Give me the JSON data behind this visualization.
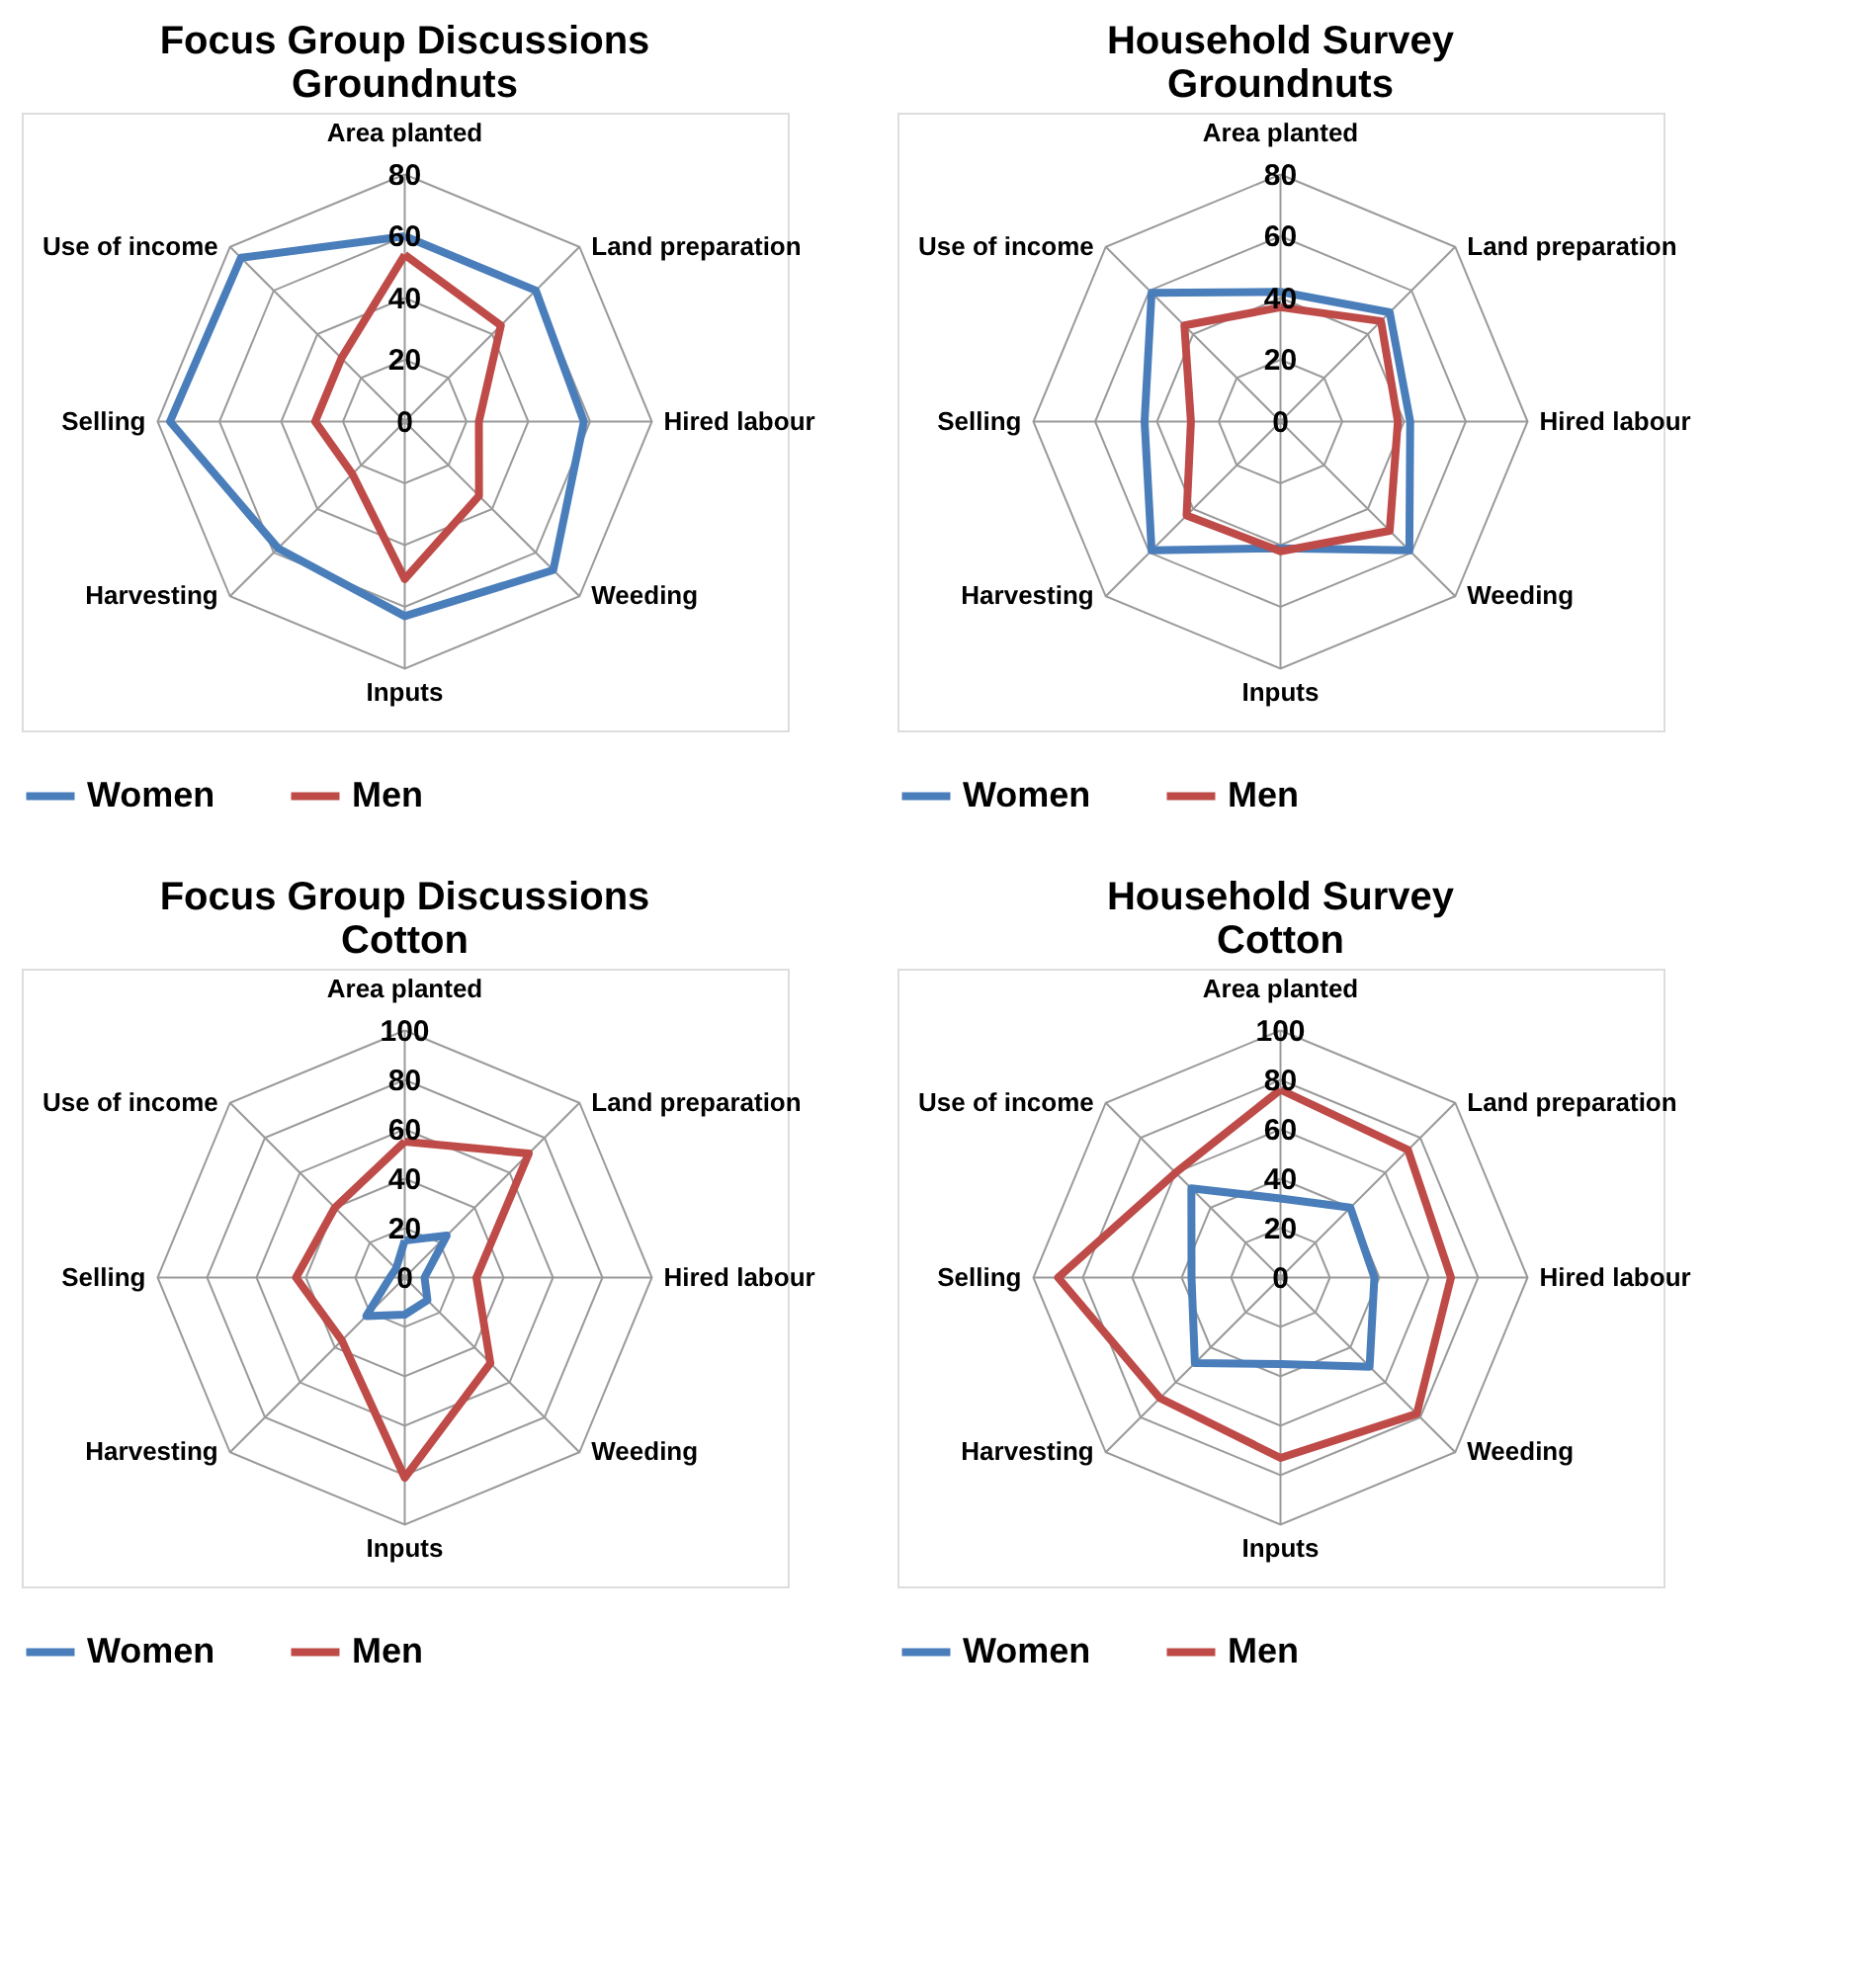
{
  "chart_data": [
    {
      "type": "radar",
      "title": "Focus Group Discussions\nGroundnuts",
      "categories": [
        "Area planted",
        "Land preparation",
        "Hired labour",
        "Weeding",
        "Inputs",
        "Harvesting",
        "Selling",
        "Use of income"
      ],
      "ylim": [
        0,
        80
      ],
      "yticks": [
        0,
        20,
        40,
        60,
        80
      ],
      "grid": true,
      "legend": "bottom",
      "series": [
        {
          "name": "Women",
          "color": "#4a7ebb",
          "values": [
            60,
            60,
            58,
            68,
            63,
            58,
            76,
            75
          ]
        },
        {
          "name": "Men",
          "color": "#be4b48",
          "values": [
            54,
            44,
            24,
            34,
            51,
            24,
            29,
            29
          ]
        }
      ]
    },
    {
      "type": "radar",
      "title": "Household Survey\nGroundnuts",
      "categories": [
        "Area planted",
        "Land preparation",
        "Hired labour",
        "Weeding",
        "Inputs",
        "Harvesting",
        "Selling",
        "Use of income"
      ],
      "ylim": [
        0,
        80
      ],
      "yticks": [
        0,
        20,
        40,
        60,
        80
      ],
      "grid": true,
      "legend": "bottom",
      "series": [
        {
          "name": "Women",
          "color": "#4a7ebb",
          "values": [
            42,
            50,
            42,
            59,
            41,
            59,
            44,
            59
          ]
        },
        {
          "name": "Men",
          "color": "#be4b48",
          "values": [
            37,
            46,
            38,
            50,
            42,
            43,
            29,
            44
          ]
        }
      ]
    },
    {
      "type": "radar",
      "title": "Focus Group Discussions\nCotton",
      "categories": [
        "Area planted",
        "Land preparation",
        "Hired labour",
        "Weeding",
        "Inputs",
        "Harvesting",
        "Selling",
        "Use of income"
      ],
      "ylim": [
        0,
        100
      ],
      "yticks": [
        0,
        20,
        40,
        60,
        80,
        100
      ],
      "grid": true,
      "legend": "bottom",
      "series": [
        {
          "name": "Women",
          "color": "#4a7ebb",
          "values": [
            15,
            24,
            8,
            13,
            15,
            22,
            6,
            5
          ]
        },
        {
          "name": "Men",
          "color": "#be4b48",
          "values": [
            55,
            71,
            29,
            49,
            81,
            36,
            44,
            40
          ]
        }
      ]
    },
    {
      "type": "radar",
      "title": "Household Survey\nCotton",
      "categories": [
        "Area planted",
        "Land preparation",
        "Hired labour",
        "Weeding",
        "Inputs",
        "Harvesting",
        "Selling",
        "Use of income"
      ],
      "ylim": [
        0,
        100
      ],
      "yticks": [
        0,
        20,
        40,
        60,
        80,
        100
      ],
      "grid": true,
      "legend": "bottom",
      "series": [
        {
          "name": "Women",
          "color": "#4a7ebb",
          "values": [
            32,
            40,
            38,
            51,
            35,
            49,
            36,
            51
          ]
        },
        {
          "name": "Men",
          "color": "#be4b48",
          "values": [
            76,
            73,
            69,
            78,
            73,
            69,
            90,
            60
          ]
        }
      ]
    }
  ]
}
